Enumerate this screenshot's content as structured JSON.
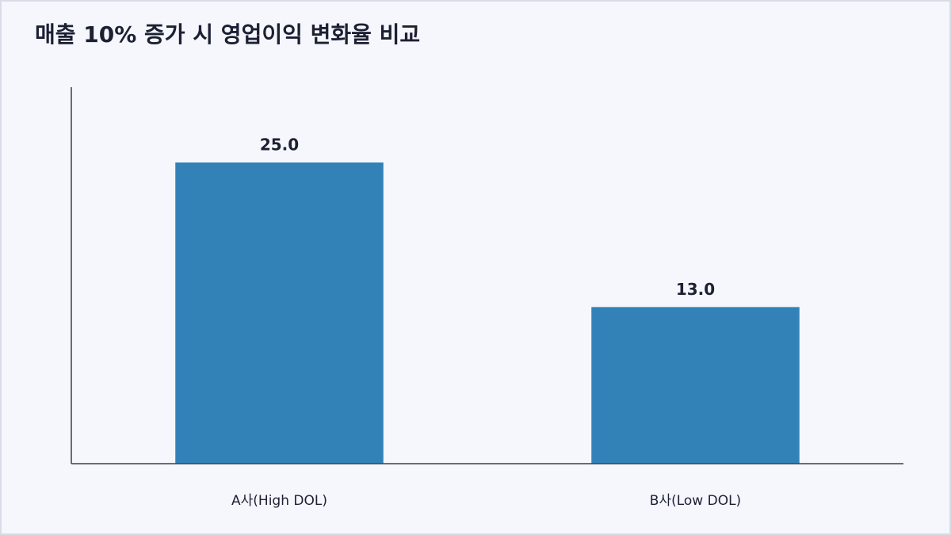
{
  "chart_data": {
    "type": "bar",
    "title": "매출 10% 증가 시 영업이익 변화율 비교",
    "categories": [
      "A사(High DOL)",
      "B사(Low DOL)"
    ],
    "values": [
      25,
      13
    ],
    "value_labels": [
      "25.0",
      "13.0"
    ],
    "color": "#3282b8",
    "ylim": [
      0,
      31.25
    ]
  }
}
